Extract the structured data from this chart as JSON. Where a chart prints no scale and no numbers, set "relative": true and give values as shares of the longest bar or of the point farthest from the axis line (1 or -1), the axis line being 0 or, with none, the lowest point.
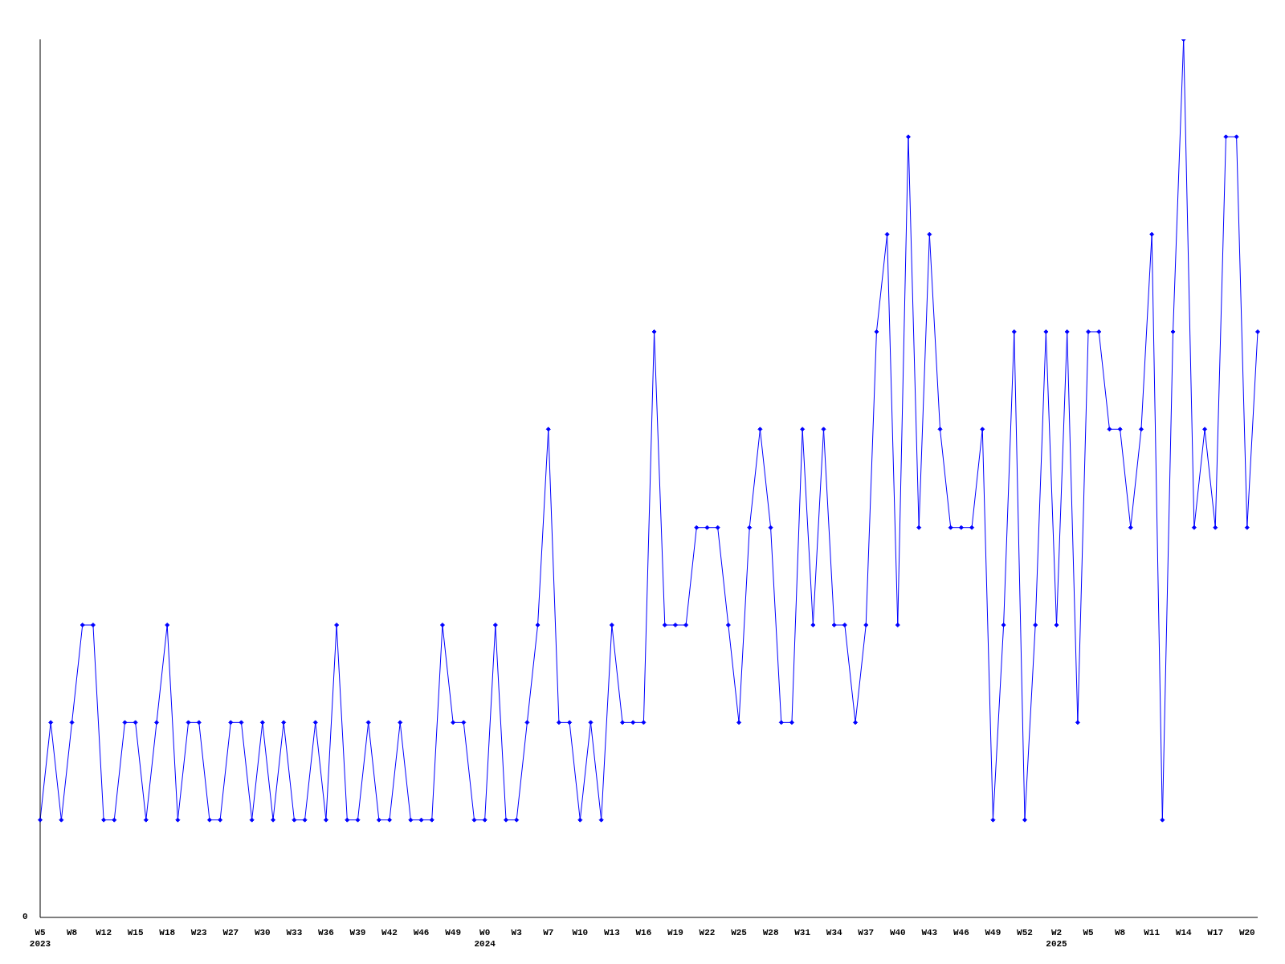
{
  "chart_data": {
    "type": "line",
    "relative": true,
    "annotations": [
      "0"
    ],
    "marker": "diamond",
    "line_style": "solid",
    "categories": [
      "W5\n2023",
      null,
      null,
      "W8",
      null,
      null,
      "W12",
      null,
      null,
      "W15",
      null,
      null,
      "W18",
      null,
      null,
      "W23",
      null,
      null,
      "W27",
      null,
      null,
      "W30",
      null,
      null,
      "W33",
      null,
      null,
      "W36",
      null,
      null,
      "W39",
      null,
      null,
      "W42",
      null,
      null,
      "W46",
      null,
      null,
      "W49",
      null,
      null,
      "W0\n2024",
      null,
      null,
      "W3",
      null,
      null,
      "W7",
      null,
      null,
      "W10",
      null,
      null,
      "W13",
      null,
      null,
      "W16",
      null,
      null,
      "W19",
      null,
      null,
      "W22",
      null,
      null,
      "W25",
      null,
      null,
      "W28",
      null,
      null,
      "W31",
      null,
      null,
      "W34",
      null,
      null,
      "W37",
      null,
      null,
      "W40",
      null,
      null,
      "W43",
      null,
      null,
      "W46",
      null,
      null,
      "W49",
      null,
      null,
      "W52",
      null,
      null,
      "W2\n2025",
      null,
      null,
      "W5",
      null,
      null,
      "W8",
      null,
      null,
      "W11",
      null,
      null,
      "W14",
      null,
      null,
      "W17",
      null,
      null,
      "W20",
      null
    ],
    "series": [
      {
        "color": "#0000ff",
        "values": [
          0.111,
          0.222,
          0.111,
          0.222,
          0.333,
          0.333,
          0.111,
          0.111,
          0.222,
          0.222,
          0.111,
          0.222,
          0.333,
          0.111,
          0.222,
          0.222,
          0.111,
          0.111,
          0.222,
          0.222,
          0.111,
          0.222,
          0.111,
          0.222,
          0.111,
          0.111,
          0.222,
          0.111,
          0.333,
          0.111,
          0.111,
          0.222,
          0.111,
          0.111,
          0.222,
          0.111,
          0.111,
          0.111,
          0.333,
          0.222,
          0.222,
          0.111,
          0.111,
          0.333,
          0.111,
          0.111,
          0.222,
          0.333,
          0.556,
          0.222,
          0.222,
          0.111,
          0.222,
          0.111,
          0.333,
          0.222,
          0.222,
          0.222,
          0.667,
          0.333,
          0.333,
          0.333,
          0.444,
          0.444,
          0.444,
          0.333,
          0.222,
          0.444,
          0.556,
          0.444,
          0.222,
          0.222,
          0.556,
          0.333,
          0.556,
          0.333,
          0.333,
          0.222,
          0.333,
          0.667,
          0.778,
          0.333,
          0.889,
          0.444,
          0.778,
          0.556,
          0.444,
          0.444,
          0.444,
          0.556,
          0.111,
          0.333,
          0.667,
          0.111,
          0.333,
          0.667,
          0.333,
          0.667,
          0.222,
          0.667,
          0.667,
          0.556,
          0.556,
          0.444,
          0.556,
          0.778,
          0.111,
          0.667,
          1,
          0.444,
          0.556,
          0.444,
          0.889,
          0.889,
          0.444,
          0.667
        ]
      }
    ]
  }
}
